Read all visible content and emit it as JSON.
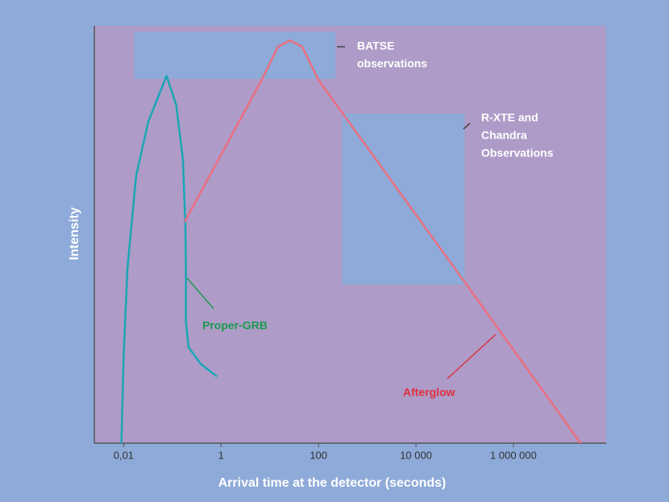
{
  "chart_data": {
    "type": "line",
    "xlabel": "Arrival time at the detector (seconds)",
    "ylabel": "Intensity",
    "xscale": "log",
    "xlim": [
      0.0025,
      80000000
    ],
    "xticks": [
      {
        "value": 0.01,
        "label": "0,01"
      },
      1,
      100,
      {
        "value": 10000,
        "label": "10 000"
      },
      {
        "value": 1000000,
        "label": "1 000 000"
      }
    ],
    "ylim": [
      0,
      100
    ],
    "series": [
      {
        "name": "Proper-GRB",
        "color": "#1aa6b4",
        "label_color": "#1c9a4c",
        "x": [
          0.009,
          0.01,
          0.012,
          0.018,
          0.032,
          0.076,
          0.12,
          0.165,
          0.185,
          0.19,
          0.19,
          0.215,
          0.38,
          0.82
        ],
        "values": [
          0,
          21,
          42,
          64,
          77,
          88,
          81,
          68,
          52,
          42,
          29,
          23,
          19,
          16
        ]
      },
      {
        "name": "Afterglow",
        "color": "#ea6f80",
        "label_color": "#e0303f",
        "x": [
          0.178,
          6.8,
          14.7,
          26,
          46,
          100,
          100000,
          24000000
        ],
        "values": [
          53,
          87,
          95,
          96.5,
          95,
          87,
          38.6,
          0
        ]
      }
    ],
    "regions": [
      {
        "label": [
          "BATSE",
          "observations"
        ],
        "x": [
          0.0165,
          224
        ],
        "y": [
          87.3,
          98.5
        ],
        "color": "#8eaad8"
      },
      {
        "label": [
          "R-XTE and",
          "Chandra",
          "Observations"
        ],
        "x": [
          304,
          100000
        ],
        "y": [
          38,
          79
        ],
        "color": "#8eaad8"
      }
    ]
  }
}
